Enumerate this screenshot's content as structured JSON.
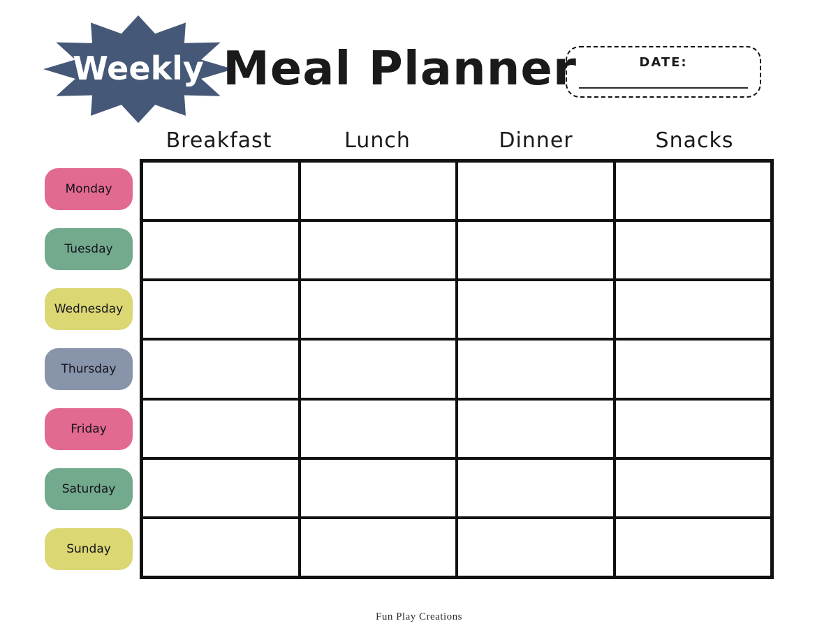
{
  "badge": {
    "label": "Weekly",
    "color": "#465877",
    "text_color": "#ffffff"
  },
  "title": "Meal Planner",
  "date_box": {
    "label": "DATE:"
  },
  "columns": [
    "Breakfast",
    "Lunch",
    "Dinner",
    "Snacks"
  ],
  "days": [
    {
      "label": "Monday",
      "color": "#e2698f"
    },
    {
      "label": "Tuesday",
      "color": "#73aa8d"
    },
    {
      "label": "Wednesday",
      "color": "#dbd773"
    },
    {
      "label": "Thursday",
      "color": "#8894aa"
    },
    {
      "label": "Friday",
      "color": "#e2698f"
    },
    {
      "label": "Saturday",
      "color": "#73aa8d"
    },
    {
      "label": "Sunday",
      "color": "#dbd773"
    }
  ],
  "footer": {
    "credit": "Fun Play Creations"
  }
}
